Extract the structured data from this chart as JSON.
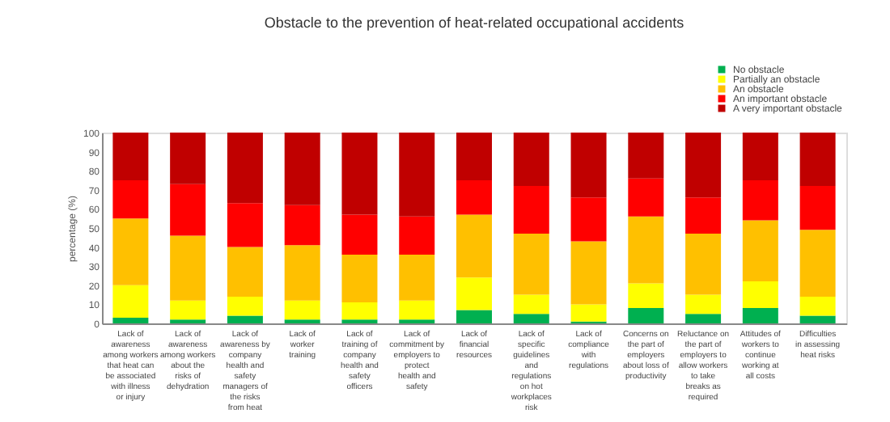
{
  "chart_data": {
    "type": "bar",
    "stacked": true,
    "title": "Obstacle to the prevention of heat-related occupational accidents",
    "ylabel": "percentage (%)",
    "categories": [
      "Lack of awareness among workers that heat can be associated with illness or injury",
      "Lack of awareness among workers about the risks of dehydration",
      "Lack of awareness by company health and safety managers of the risks from heat",
      "Lack of worker training",
      "Lack of training of company health and safety officers",
      "Lack of commitment by employers to protect health and safety",
      "Lack of financial resources",
      "Lack of specific guidelines and regulations on hot workplaces risk",
      "Lack of compliance with regulations",
      "Concerns on the part of employers about loss of productivity",
      "Reluctance on the part of employers to allow workers to take breaks as required",
      "Attitudes of workers to continue working at all costs",
      "Difficulties in assessing heat risks"
    ],
    "series": [
      {
        "name": "No obstacle",
        "color": "#00b050",
        "values": [
          3,
          2,
          4,
          2,
          2,
          2,
          7,
          5,
          1,
          8,
          5,
          8,
          4
        ]
      },
      {
        "name": "Partially an obstacle",
        "color": "#ffff00",
        "values": [
          17,
          10,
          10,
          10,
          9,
          10,
          17,
          10,
          9,
          13,
          10,
          14,
          10
        ]
      },
      {
        "name": "An obstacle",
        "color": "#ffc000",
        "values": [
          35,
          34,
          26,
          29,
          25,
          24,
          33,
          32,
          33,
          35,
          32,
          32,
          35
        ]
      },
      {
        "name": "An important obstacle",
        "color": "#ff0000",
        "values": [
          20,
          27,
          23,
          21,
          21,
          20,
          18,
          25,
          23,
          20,
          19,
          21,
          23
        ]
      },
      {
        "name": "A very important obstacle",
        "color": "#c00000",
        "values": [
          25,
          27,
          37,
          38,
          43,
          44,
          25,
          28,
          34,
          24,
          34,
          25,
          28
        ]
      }
    ],
    "ylim": [
      0,
      100
    ],
    "yticks": [
      0,
      10,
      20,
      30,
      40,
      50,
      60,
      70,
      80,
      90,
      100
    ],
    "grid": false,
    "legend": "top right"
  }
}
